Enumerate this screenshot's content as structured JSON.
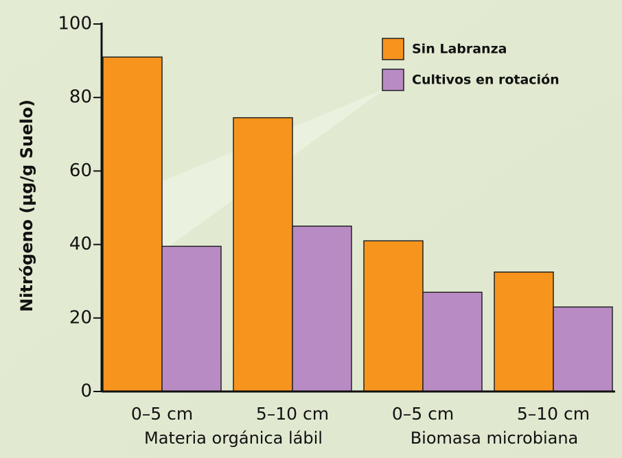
{
  "chart_data": {
    "type": "bar",
    "y_axis_label": "Nitrógeno (µg/g Suelo)",
    "categories": [
      "0–5 cm",
      "5–10 cm",
      "0–5 cm",
      "5–10 cm"
    ],
    "group_labels": [
      "Materia orgánica lábil",
      "Biomasa microbiana"
    ],
    "series": [
      {
        "name": "Sin Labranza",
        "color": "#f7941d",
        "values": [
          91,
          74.5,
          41,
          32.5
        ]
      },
      {
        "name": "Cultivos en rotación",
        "color": "#b98bc4",
        "values": [
          39.5,
          45,
          27,
          23
        ]
      }
    ],
    "ylim": [
      0,
      100
    ],
    "yticks": [
      0,
      20,
      40,
      60,
      80,
      100
    ],
    "legend": "upper right"
  }
}
